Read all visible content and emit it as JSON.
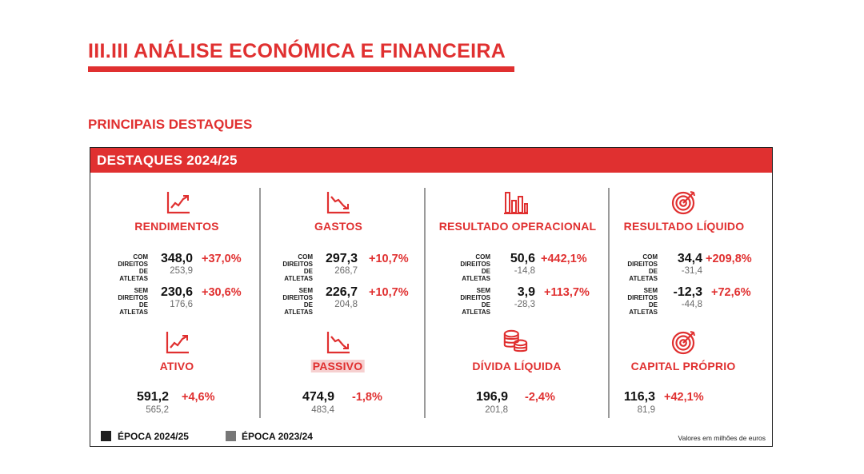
{
  "page_title": "III.III  ANÁLISE ECONÓMICA E FINANCEIRA",
  "section_title": "PRINCIPAIS DESTAQUES",
  "box_title": "DESTAQUES 2024/25",
  "labels": {
    "com": "COM\nDIREITOS\nDE ATLETAS",
    "sem": "SEM\nDIREITOS\nDE ATLETAS"
  },
  "metrics": {
    "rendimentos": {
      "title": "RENDIMENTOS",
      "icon": "line-chart-up-icon",
      "com": {
        "current": "348,0",
        "previous": "253,9",
        "change": "+37,0%"
      },
      "sem": {
        "current": "230,6",
        "previous": "176,6",
        "change": "+30,6%"
      }
    },
    "gastos": {
      "title": "GASTOS",
      "icon": "line-chart-down-icon",
      "com": {
        "current": "297,3",
        "previous": "268,7",
        "change": "+10,7%"
      },
      "sem": {
        "current": "226,7",
        "previous": "204,8",
        "change": "+10,7%"
      }
    },
    "resultado_operacional": {
      "title": "RESULTADO OPERACIONAL",
      "icon": "bar-chart-icon",
      "com": {
        "current": "50,6",
        "previous": "-14,8",
        "change": "+442,1%"
      },
      "sem": {
        "current": "3,9",
        "previous": "-28,3",
        "change": "+113,7%"
      }
    },
    "resultado_liquido": {
      "title": "RESULTADO LÍQUIDO",
      "icon": "target-icon",
      "com": {
        "current": "34,4",
        "previous": "-31,4",
        "change": "+209,8%"
      },
      "sem": {
        "current": "-12,3",
        "previous": "-44,8",
        "change": "+72,6%"
      }
    },
    "ativo": {
      "title": "ATIVO",
      "icon": "line-chart-up-icon",
      "current": "591,2",
      "previous": "565,2",
      "change": "+4,6%"
    },
    "passivo": {
      "title": "PASSIVO",
      "icon": "line-chart-down-icon",
      "current": "474,9",
      "previous": "483,4",
      "change": "-1,8%"
    },
    "divida_liquida": {
      "title": "DÍVIDA LÍQUIDA",
      "icon": "coins-icon",
      "current": "196,9",
      "previous": "201,8",
      "change": "-2,4%"
    },
    "capital_proprio": {
      "title": "CAPITAL PRÓPRIO",
      "icon": "target-icon",
      "current": "116,3",
      "previous": "81,9",
      "change": "+42,1%"
    }
  },
  "legend": {
    "current": {
      "label": "ÉPOCA 2024/25",
      "color": "#1f1f1f"
    },
    "previous": {
      "label": "ÉPOCA 2023/24",
      "color": "#777777"
    }
  },
  "note": "Valores em milhões de euros",
  "colors": {
    "accent": "#e03030",
    "text": "#111111",
    "muted": "#6a6a6a"
  }
}
